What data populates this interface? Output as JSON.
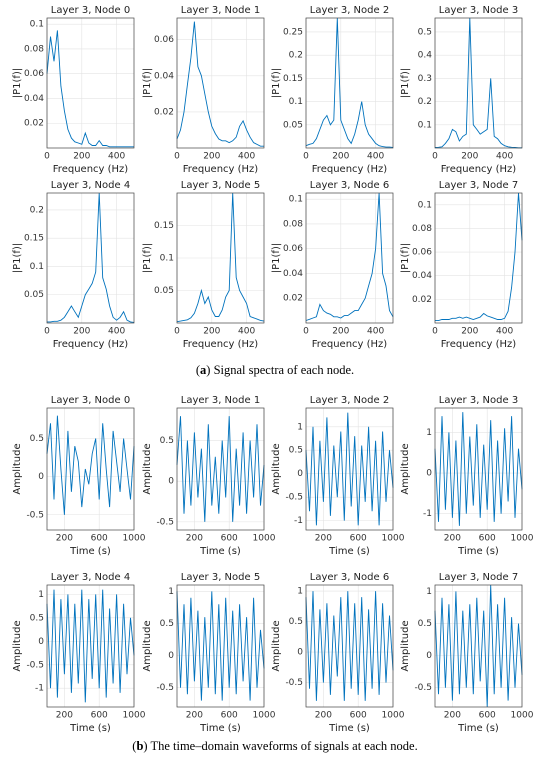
{
  "chart_data": [
    {
      "type": "line",
      "title": "Layer 3, Node 0",
      "xlabel": "Frequency (Hz)",
      "ylabel": "|P1(f)|",
      "color": "#0072bd",
      "grid": true,
      "xlim": [
        0,
        500
      ],
      "xticks": [
        0,
        200,
        400
      ],
      "ylim": [
        0,
        0.105
      ],
      "yticks": [
        0.02,
        0.04,
        0.06,
        0.08,
        0.1
      ],
      "x": [
        0,
        20,
        40,
        60,
        80,
        100,
        120,
        140,
        160,
        180,
        200,
        220,
        240,
        260,
        280,
        300,
        320,
        340,
        360,
        380,
        400,
        420,
        440,
        460,
        480,
        500
      ],
      "values": [
        0.06,
        0.09,
        0.07,
        0.095,
        0.05,
        0.03,
        0.015,
        0.008,
        0.005,
        0.004,
        0.003,
        0.012,
        0.004,
        0.002,
        0.002,
        0.006,
        0.002,
        0.002,
        0.001,
        0.001,
        0.001,
        0.001,
        0.001,
        0.001,
        0.001,
        0.001
      ]
    },
    {
      "type": "line",
      "title": "Layer 3, Node 1",
      "xlabel": "Frequency (Hz)",
      "ylabel": "|P1(f)|",
      "color": "#0072bd",
      "grid": true,
      "xlim": [
        0,
        500
      ],
      "xticks": [
        0,
        200,
        400
      ],
      "ylim": [
        0,
        0.072
      ],
      "yticks": [
        0.02,
        0.04,
        0.06
      ],
      "x": [
        0,
        20,
        40,
        60,
        80,
        100,
        120,
        140,
        160,
        180,
        200,
        220,
        240,
        260,
        280,
        300,
        320,
        340,
        360,
        380,
        400,
        420,
        440,
        460,
        480,
        500
      ],
      "values": [
        0.005,
        0.01,
        0.02,
        0.035,
        0.05,
        0.07,
        0.045,
        0.04,
        0.03,
        0.02,
        0.012,
        0.008,
        0.005,
        0.004,
        0.004,
        0.003,
        0.004,
        0.006,
        0.012,
        0.015,
        0.01,
        0.006,
        0.003,
        0.002,
        0.001,
        0.001
      ]
    },
    {
      "type": "line",
      "title": "Layer 3, Node 2",
      "xlabel": "Frequency (Hz)",
      "ylabel": "|P1(f)|",
      "color": "#0072bd",
      "grid": true,
      "xlim": [
        0,
        500
      ],
      "xticks": [
        0,
        200,
        400
      ],
      "ylim": [
        0,
        0.28
      ],
      "yticks": [
        0.05,
        0.1,
        0.15,
        0.2,
        0.25
      ],
      "x": [
        0,
        20,
        40,
        60,
        80,
        100,
        120,
        140,
        160,
        180,
        200,
        220,
        240,
        260,
        280,
        300,
        320,
        340,
        360,
        380,
        400,
        420,
        440,
        460,
        480,
        500
      ],
      "values": [
        0.005,
        0.008,
        0.01,
        0.02,
        0.04,
        0.06,
        0.07,
        0.05,
        0.06,
        0.28,
        0.06,
        0.04,
        0.02,
        0.01,
        0.03,
        0.06,
        0.1,
        0.05,
        0.03,
        0.02,
        0.01,
        0.005,
        0.003,
        0.002,
        0.002,
        0.001
      ]
    },
    {
      "type": "line",
      "title": "Layer 3, Node 3",
      "xlabel": "Frequency (Hz)",
      "ylabel": "|P1(f)|",
      "color": "#0072bd",
      "grid": true,
      "xlim": [
        0,
        500
      ],
      "xticks": [
        0,
        200,
        400
      ],
      "ylim": [
        0,
        0.56
      ],
      "yticks": [
        0.1,
        0.2,
        0.3,
        0.4,
        0.5
      ],
      "x": [
        0,
        20,
        40,
        60,
        80,
        100,
        120,
        140,
        160,
        180,
        200,
        220,
        240,
        260,
        280,
        300,
        320,
        340,
        360,
        380,
        400,
        420,
        440,
        460,
        480,
        500
      ],
      "values": [
        0.002,
        0.003,
        0.005,
        0.02,
        0.04,
        0.08,
        0.07,
        0.03,
        0.05,
        0.06,
        0.56,
        0.1,
        0.08,
        0.06,
        0.07,
        0.08,
        0.3,
        0.05,
        0.04,
        0.02,
        0.01,
        0.005,
        0.003,
        0.002,
        0.001,
        0.001
      ]
    },
    {
      "type": "line",
      "title": "Layer 3, Node 4",
      "xlabel": "Frequency (Hz)",
      "ylabel": "|P1(f)|",
      "color": "#0072bd",
      "grid": true,
      "xlim": [
        0,
        500
      ],
      "xticks": [
        0,
        200,
        400
      ],
      "ylim": [
        0,
        0.23
      ],
      "yticks": [
        0.05,
        0.1,
        0.15,
        0.2
      ],
      "x": [
        0,
        20,
        40,
        60,
        80,
        100,
        120,
        140,
        160,
        180,
        200,
        220,
        240,
        260,
        280,
        300,
        320,
        340,
        360,
        380,
        400,
        420,
        440,
        460,
        480,
        500
      ],
      "values": [
        0.002,
        0.002,
        0.003,
        0.003,
        0.005,
        0.01,
        0.02,
        0.03,
        0.02,
        0.01,
        0.03,
        0.05,
        0.06,
        0.07,
        0.09,
        0.23,
        0.08,
        0.06,
        0.03,
        0.01,
        0.005,
        0.01,
        0.02,
        0.005,
        0.002,
        0.001
      ]
    },
    {
      "type": "line",
      "title": "Layer 3, Node 5",
      "xlabel": "Frequency (Hz)",
      "ylabel": "|P1(f)|",
      "color": "#0072bd",
      "grid": true,
      "xlim": [
        0,
        500
      ],
      "xticks": [
        0,
        200,
        400
      ],
      "ylim": [
        0,
        0.2
      ],
      "yticks": [
        0.05,
        0.1,
        0.15
      ],
      "x": [
        0,
        20,
        40,
        60,
        80,
        100,
        120,
        140,
        160,
        180,
        200,
        220,
        240,
        260,
        280,
        300,
        320,
        340,
        360,
        380,
        400,
        420,
        440,
        460,
        480,
        500
      ],
      "values": [
        0.002,
        0.003,
        0.004,
        0.005,
        0.008,
        0.015,
        0.03,
        0.05,
        0.03,
        0.04,
        0.02,
        0.01,
        0.01,
        0.02,
        0.04,
        0.05,
        0.2,
        0.07,
        0.05,
        0.04,
        0.03,
        0.01,
        0.008,
        0.006,
        0.004,
        0.003
      ]
    },
    {
      "type": "line",
      "title": "Layer 3, Node 6",
      "xlabel": "Frequency (Hz)",
      "ylabel": "|P1(f)|",
      "color": "#0072bd",
      "grid": true,
      "xlim": [
        0,
        500
      ],
      "xticks": [
        0,
        200,
        400
      ],
      "ylim": [
        0,
        0.105
      ],
      "yticks": [
        0.02,
        0.04,
        0.06,
        0.08,
        0.1
      ],
      "x": [
        0,
        20,
        40,
        60,
        80,
        100,
        120,
        140,
        160,
        180,
        200,
        220,
        240,
        260,
        280,
        300,
        320,
        340,
        360,
        380,
        400,
        420,
        440,
        460,
        480,
        500
      ],
      "values": [
        0.002,
        0.003,
        0.004,
        0.005,
        0.015,
        0.01,
        0.008,
        0.007,
        0.005,
        0.005,
        0.004,
        0.006,
        0.006,
        0.008,
        0.01,
        0.01,
        0.015,
        0.02,
        0.03,
        0.04,
        0.06,
        0.105,
        0.04,
        0.03,
        0.01,
        0.005
      ]
    },
    {
      "type": "line",
      "title": "Layer 3, Node 7",
      "xlabel": "Frequency (Hz)",
      "ylabel": "|P1(f)|",
      "color": "#0072bd",
      "grid": true,
      "xlim": [
        0,
        500
      ],
      "xticks": [
        0,
        200,
        400
      ],
      "ylim": [
        0,
        0.11
      ],
      "yticks": [
        0.02,
        0.04,
        0.06,
        0.08,
        0.1
      ],
      "x": [
        0,
        20,
        40,
        60,
        80,
        100,
        120,
        140,
        160,
        180,
        200,
        220,
        240,
        260,
        280,
        300,
        320,
        340,
        360,
        380,
        400,
        420,
        440,
        460,
        480,
        500
      ],
      "values": [
        0.002,
        0.002,
        0.003,
        0.003,
        0.003,
        0.004,
        0.004,
        0.005,
        0.004,
        0.005,
        0.004,
        0.003,
        0.004,
        0.005,
        0.008,
        0.006,
        0.005,
        0.004,
        0.003,
        0.003,
        0.004,
        0.01,
        0.03,
        0.06,
        0.11,
        0.07
      ]
    },
    {
      "type": "line",
      "title": "Layer 3, Node 0",
      "xlabel": "Time (s)",
      "ylabel": "Amplitude",
      "color": "#0072bd",
      "grid": true,
      "xlim": [
        0,
        1000
      ],
      "xticks": [
        200,
        600,
        1000
      ],
      "ylim": [
        -0.7,
        0.9
      ],
      "yticks": [
        -0.5,
        0,
        0.5
      ],
      "x": [
        0,
        40,
        80,
        120,
        160,
        200,
        240,
        280,
        320,
        360,
        400,
        440,
        480,
        520,
        560,
        600,
        640,
        680,
        720,
        760,
        800,
        840,
        880,
        920,
        960,
        1000
      ],
      "values": [
        0.3,
        0.7,
        -0.3,
        0.8,
        0.1,
        -0.5,
        0.6,
        -0.2,
        0.4,
        0.2,
        -0.4,
        0.1,
        -0.1,
        0.3,
        0.5,
        -0.3,
        0.7,
        0.1,
        -0.4,
        0.6,
        0.2,
        -0.2,
        0.5,
        0.1,
        -0.3,
        0.4
      ]
    },
    {
      "type": "line",
      "title": "Layer 3, Node 1",
      "xlabel": "Time (s)",
      "ylabel": "Amplitude",
      "color": "#0072bd",
      "grid": true,
      "xlim": [
        0,
        1000
      ],
      "xticks": [
        200,
        600,
        1000
      ],
      "ylim": [
        -0.6,
        0.9
      ],
      "yticks": [
        -0.5,
        0,
        0.5
      ],
      "x": [
        0,
        40,
        80,
        120,
        160,
        200,
        240,
        280,
        320,
        360,
        400,
        440,
        480,
        520,
        560,
        600,
        640,
        680,
        720,
        760,
        800,
        840,
        880,
        920,
        960,
        1000
      ],
      "values": [
        0.2,
        0.8,
        -0.4,
        0.5,
        -0.3,
        0.6,
        -0.2,
        0.4,
        -0.5,
        0.7,
        -0.3,
        0.3,
        -0.4,
        0.5,
        -0.2,
        0.8,
        -0.5,
        0.4,
        -0.3,
        0.6,
        -0.4,
        0.5,
        -0.2,
        0.7,
        -0.3,
        0.2
      ]
    },
    {
      "type": "line",
      "title": "Layer 3, Node 2",
      "xlabel": "Time (s)",
      "ylabel": "Amplitude",
      "color": "#0072bd",
      "grid": true,
      "xlim": [
        0,
        1000
      ],
      "xticks": [
        200,
        600,
        1000
      ],
      "ylim": [
        -1.2,
        1.4
      ],
      "yticks": [
        -1,
        -0.5,
        0,
        0.5,
        1
      ],
      "x": [
        0,
        40,
        80,
        120,
        160,
        200,
        240,
        280,
        320,
        360,
        400,
        440,
        480,
        520,
        560,
        600,
        640,
        680,
        720,
        760,
        800,
        840,
        880,
        920,
        960,
        1000
      ],
      "values": [
        0.5,
        -0.8,
        1.0,
        -1.1,
        0.7,
        -0.6,
        1.2,
        -0.9,
        0.6,
        -0.5,
        0.9,
        -1.0,
        1.3,
        -0.7,
        0.8,
        -1.1,
        0.6,
        -0.6,
        1.0,
        -0.8,
        0.7,
        -1.1,
        0.9,
        -0.6,
        0.5,
        -0.3
      ]
    },
    {
      "type": "line",
      "title": "Layer 3, Node 3",
      "xlabel": "Time (s)",
      "ylabel": "Amplitude",
      "color": "#0072bd",
      "grid": true,
      "xlim": [
        0,
        1000
      ],
      "xticks": [
        200,
        600,
        1000
      ],
      "ylim": [
        -1.4,
        1.6
      ],
      "yticks": [
        -1,
        0,
        1
      ],
      "x": [
        0,
        40,
        80,
        120,
        160,
        200,
        240,
        280,
        320,
        360,
        400,
        440,
        480,
        520,
        560,
        600,
        640,
        680,
        720,
        760,
        800,
        840,
        880,
        920,
        960,
        1000
      ],
      "values": [
        0.6,
        -1.2,
        1.4,
        -0.9,
        1.0,
        -1.1,
        0.8,
        -1.3,
        1.5,
        -1.0,
        0.9,
        -0.8,
        1.2,
        -1.1,
        0.7,
        -0.9,
        1.3,
        -1.2,
        0.8,
        -1.0,
        1.1,
        -0.7,
        1.4,
        -1.1,
        0.6,
        -0.4
      ]
    },
    {
      "type": "line",
      "title": "Layer 3, Node 4",
      "xlabel": "Time (s)",
      "ylabel": "Amplitude",
      "color": "#0072bd",
      "grid": true,
      "xlim": [
        0,
        1000
      ],
      "xticks": [
        200,
        600,
        1000
      ],
      "ylim": [
        -1.4,
        1.2
      ],
      "yticks": [
        -1,
        -0.5,
        0,
        0.5,
        1
      ],
      "x": [
        0,
        40,
        80,
        120,
        160,
        200,
        240,
        280,
        320,
        360,
        400,
        440,
        480,
        520,
        560,
        600,
        640,
        680,
        720,
        760,
        800,
        840,
        880,
        920,
        960,
        1000
      ],
      "values": [
        0.8,
        -1.0,
        1.1,
        -1.2,
        0.9,
        -0.7,
        1.0,
        -1.1,
        0.8,
        -0.9,
        1.1,
        -1.3,
        0.9,
        -0.8,
        1.0,
        -1.0,
        1.1,
        -1.2,
        0.7,
        -0.9,
        1.0,
        -1.1,
        0.8,
        -0.7,
        0.5,
        -0.3
      ]
    },
    {
      "type": "line",
      "title": "Layer 3, Node 5",
      "xlabel": "Time (s)",
      "ylabel": "Amplitude",
      "color": "#0072bd",
      "grid": true,
      "xlim": [
        0,
        1000
      ],
      "xticks": [
        200,
        600,
        1000
      ],
      "ylim": [
        -0.8,
        1.1
      ],
      "yticks": [
        -0.5,
        0,
        0.5,
        1
      ],
      "x": [
        0,
        40,
        80,
        120,
        160,
        200,
        240,
        280,
        320,
        360,
        400,
        440,
        480,
        520,
        560,
        600,
        640,
        680,
        720,
        760,
        800,
        840,
        880,
        920,
        960,
        1000
      ],
      "values": [
        1.0,
        -0.5,
        0.8,
        -0.6,
        0.9,
        -0.4,
        0.7,
        -0.7,
        0.6,
        -0.5,
        1.0,
        -0.6,
        0.8,
        -0.7,
        0.9,
        -0.5,
        0.7,
        -0.6,
        0.8,
        -0.4,
        0.6,
        -0.7,
        0.9,
        -0.5,
        0.4,
        -0.2
      ]
    },
    {
      "type": "line",
      "title": "Layer 3, Node 6",
      "xlabel": "Time (s)",
      "ylabel": "Amplitude",
      "color": "#0072bd",
      "grid": true,
      "xlim": [
        0,
        1000
      ],
      "xticks": [
        200,
        600,
        1000
      ],
      "ylim": [
        -0.9,
        1.1
      ],
      "yticks": [
        -0.5,
        0,
        0.5,
        1
      ],
      "x": [
        0,
        40,
        80,
        120,
        160,
        200,
        240,
        280,
        320,
        360,
        400,
        440,
        480,
        520,
        560,
        600,
        640,
        680,
        720,
        760,
        800,
        840,
        880,
        920,
        960,
        1000
      ],
      "values": [
        0.9,
        -0.6,
        1.0,
        -0.8,
        0.7,
        -0.5,
        0.8,
        -0.7,
        0.6,
        -0.4,
        0.9,
        -0.8,
        1.0,
        -0.6,
        0.8,
        -0.7,
        0.9,
        -0.8,
        0.7,
        -0.6,
        1.0,
        -0.7,
        0.8,
        -0.5,
        0.6,
        -0.3
      ]
    },
    {
      "type": "line",
      "title": "Layer 3, Node 7",
      "xlabel": "Time (s)",
      "ylabel": "Amplitude",
      "color": "#0072bd",
      "grid": true,
      "xlim": [
        0,
        1000
      ],
      "xticks": [
        200,
        600,
        1000
      ],
      "ylim": [
        -0.8,
        1.1
      ],
      "yticks": [
        -0.5,
        0,
        0.5,
        1
      ],
      "x": [
        0,
        40,
        80,
        120,
        160,
        200,
        240,
        280,
        320,
        360,
        400,
        440,
        480,
        520,
        560,
        600,
        640,
        680,
        720,
        760,
        800,
        840,
        880,
        920,
        960,
        1000
      ],
      "values": [
        0.7,
        -0.6,
        0.9,
        -0.5,
        0.8,
        -0.7,
        1.0,
        -0.6,
        0.7,
        -0.5,
        0.8,
        -0.6,
        0.9,
        -0.4,
        0.7,
        -0.8,
        1.1,
        -0.6,
        0.8,
        -0.5,
        0.9,
        -0.7,
        0.6,
        -0.5,
        0.5,
        -0.3
      ]
    }
  ],
  "captions": [
    {
      "open": "(",
      "label": "a",
      "text": ") Signal spectra of each node."
    },
    {
      "open": "(",
      "label": "b",
      "text": ") The time–domain waveforms of signals at each node."
    }
  ]
}
